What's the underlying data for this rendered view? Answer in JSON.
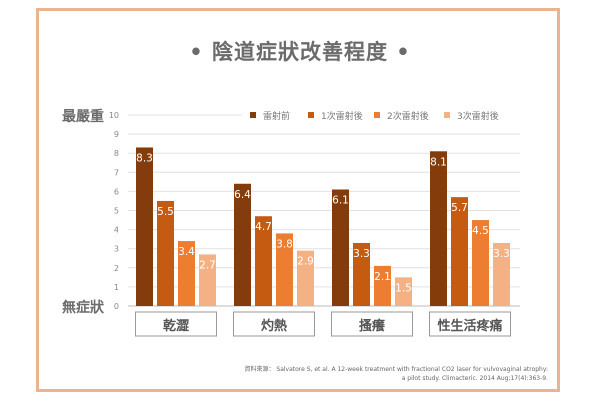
{
  "title": "• 陰道症狀改善程度 •",
  "y_top_label": "最嚴重",
  "y_bottom_label": "無症狀",
  "source_label": "資料來源：",
  "source_line1": "Salvatore S, et al. A 12-week treatment  with fractional CO2 laser for vulvovaginal atrophy:",
  "source_line2": "a pilot study. Climacteric. 2014 Aug;17(4):363-9.",
  "chart_data": {
    "type": "bar",
    "title": "陰道症狀改善程度",
    "categories": [
      "乾澀",
      "灼熱",
      "搔癢",
      "性生活疼痛"
    ],
    "series": [
      {
        "name": "雷射前",
        "values": [
          8.3,
          6.4,
          6.1,
          8.1
        ],
        "color": "#843c0c"
      },
      {
        "name": "1次雷射後",
        "values": [
          5.5,
          4.7,
          3.3,
          5.7
        ],
        "color": "#c55a11"
      },
      {
        "name": "2次雷射後",
        "values": [
          3.4,
          3.8,
          2.1,
          4.5
        ],
        "color": "#ed7d31"
      },
      {
        "name": "3次雷射後",
        "values": [
          2.7,
          2.9,
          1.5,
          3.3
        ],
        "color": "#f4b183"
      }
    ],
    "ylim": [
      0,
      10
    ],
    "yticks": [
      0,
      1,
      2,
      3,
      4,
      5,
      6,
      7,
      8,
      9,
      10
    ],
    "grid": true,
    "legend": "top-right"
  }
}
